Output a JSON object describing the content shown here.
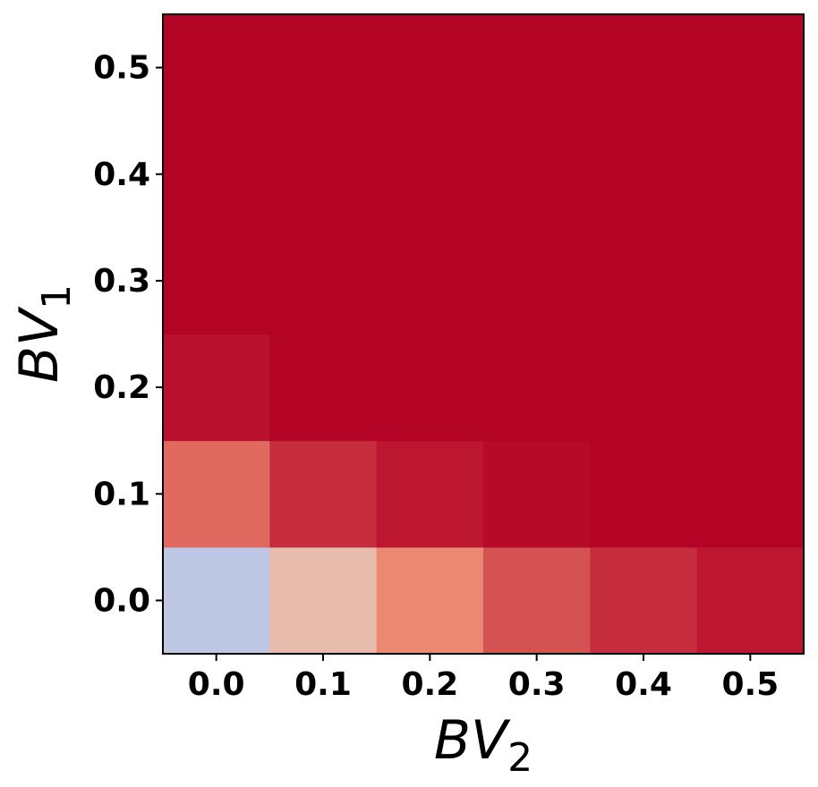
{
  "chart_data": {
    "type": "heatmap",
    "xlabel": "BV",
    "xlabel_sub": "2",
    "ylabel": "BV",
    "ylabel_sub": "1",
    "x": [
      0,
      0.1,
      0.2,
      0.3,
      0.4,
      0.5
    ],
    "y": [
      0,
      0.1,
      0.2,
      0.3,
      0.4,
      0.5
    ],
    "z": [
      [
        0.42,
        0.62,
        0.78,
        0.87,
        0.93,
        0.97
      ],
      [
        0.83,
        0.93,
        0.97,
        0.99,
        1,
        1
      ],
      [
        0.98,
        1,
        1,
        1,
        1,
        1
      ],
      [
        1,
        1,
        1,
        1,
        1,
        1
      ],
      [
        1,
        1,
        1,
        1,
        1,
        1
      ],
      [
        1,
        1,
        1,
        1,
        1,
        1
      ]
    ],
    "zlim": [
      0,
      1
    ],
    "colormap": [
      "#3b4cc0",
      "#7b9ff9",
      "#dddcdc",
      "#f49a7b",
      "#b40426"
    ],
    "xlim": [
      -0.05,
      0.55
    ],
    "ylim": [
      -0.05,
      0.55
    ],
    "xticks": [
      {
        "value": 0,
        "label": "0.0"
      },
      0.1,
      0.2,
      0.3,
      0.4,
      0.5
    ],
    "yticks": [
      {
        "value": 0,
        "label": "0.0"
      },
      0.1,
      0.2,
      0.3,
      0.4,
      0.5
    ]
  }
}
